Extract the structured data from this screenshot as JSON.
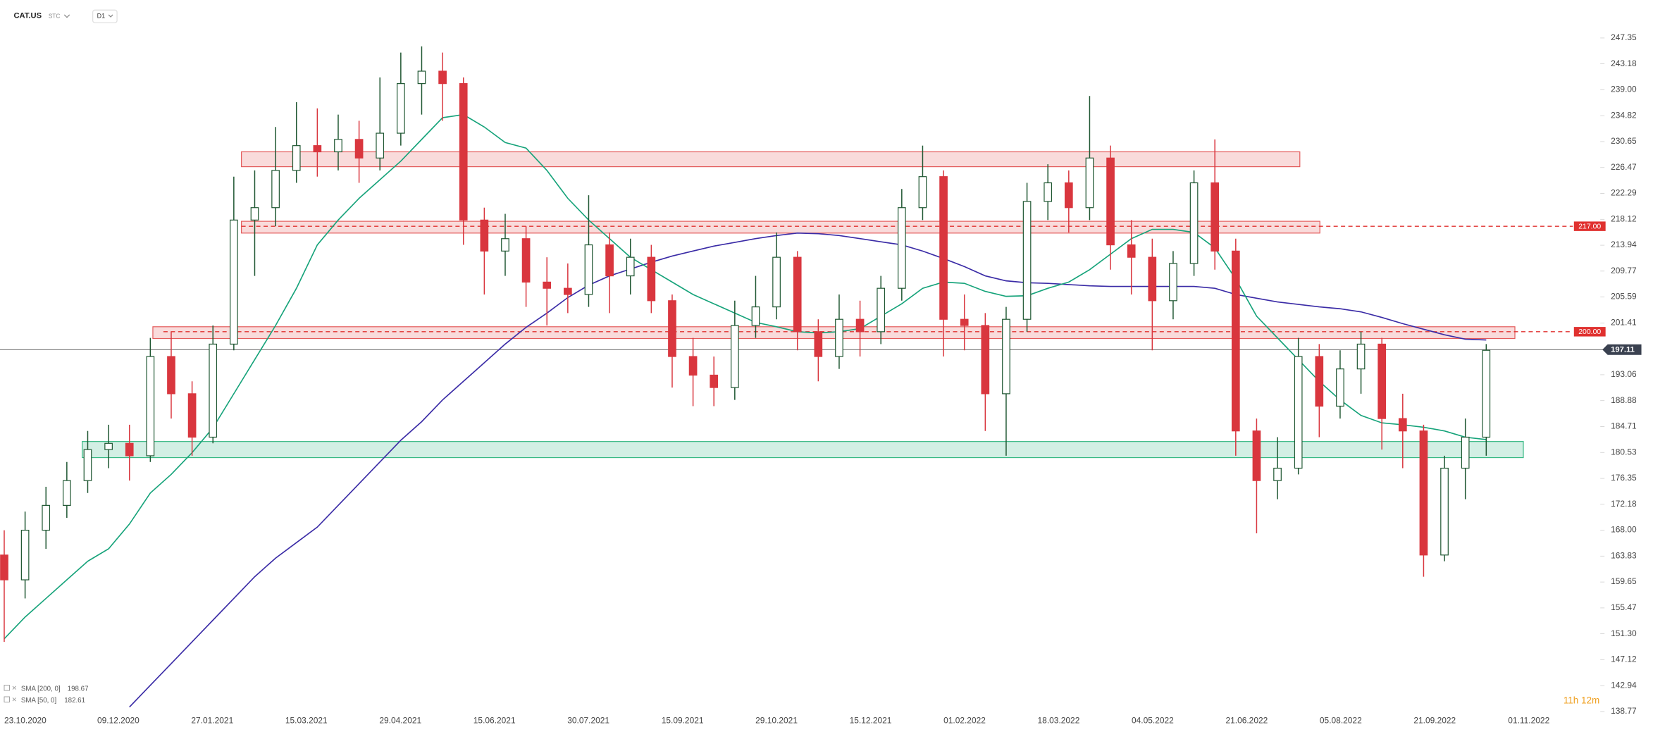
{
  "header": {
    "symbol": "CAT.US",
    "market": "STC",
    "interval": "D1"
  },
  "countdown": "11h 12m",
  "chart_data": {
    "type": "candlestick",
    "x_labels": [
      "23.10.2020",
      "09.12.2020",
      "27.01.2021",
      "15.03.2021",
      "29.04.2021",
      "15.06.2021",
      "30.07.2021",
      "15.09.2021",
      "29.10.2021",
      "15.12.2021",
      "01.02.2022",
      "18.03.2022",
      "04.05.2022",
      "21.06.2022",
      "05.08.2022",
      "21.09.2022",
      "01.11.2022"
    ],
    "ylim": [
      138.6,
      253.47
    ],
    "yticks": [
      138.77,
      142.94,
      147.12,
      {
        "value": 151.3,
        "label": "151.30"
      },
      155.47,
      159.65,
      163.83,
      {
        "value": 168,
        "label": "168.00"
      },
      172.18,
      176.35,
      180.53,
      184.71,
      188.88,
      193.06,
      201.41,
      205.59,
      209.77,
      213.94,
      218.12,
      222.29,
      226.47,
      230.65,
      234.82,
      {
        "value": 239,
        "label": "239.00"
      },
      243.18,
      247.35
    ],
    "series": [
      {
        "name": "CAT.US",
        "up_color": "#1e5631",
        "down_color": "#d9363e",
        "open": [
          164,
          160,
          168,
          172,
          176,
          181,
          182,
          180,
          196,
          190,
          183,
          198,
          218,
          220,
          226,
          230,
          229,
          231,
          228,
          232,
          240,
          242,
          240,
          218,
          213,
          215,
          208,
          207,
          206,
          214,
          209,
          212,
          205,
          196,
          193,
          191,
          201,
          204,
          212,
          200,
          196,
          202,
          200,
          207,
          220,
          225,
          202,
          201,
          190,
          202,
          221,
          224,
          220,
          228,
          214,
          212,
          205,
          211,
          224,
          213,
          184,
          176,
          178,
          196,
          188,
          194,
          198,
          186,
          184,
          164,
          178,
          183
        ],
        "high": [
          168,
          171,
          175,
          179,
          184,
          185,
          185,
          199,
          200,
          192,
          201,
          225,
          226,
          233,
          237,
          236,
          235,
          234,
          241,
          245,
          246,
          245,
          241,
          220,
          219,
          217,
          212,
          211,
          222,
          216,
          215,
          214,
          206,
          199,
          196,
          205,
          209,
          216,
          213,
          202,
          206,
          205,
          209,
          223,
          230,
          226,
          206,
          203,
          204,
          224,
          227,
          226,
          238,
          230,
          218,
          215,
          213,
          226,
          231,
          215,
          186,
          183,
          199,
          198,
          197,
          200,
          199,
          190,
          185,
          180,
          186,
          198
        ],
        "low": [
          150,
          157,
          165,
          170,
          174,
          178,
          176,
          179,
          186,
          180,
          182,
          197,
          209,
          217,
          224,
          225,
          226,
          224,
          226,
          230,
          235,
          234,
          214,
          206,
          209,
          204,
          201,
          203,
          204,
          203,
          206,
          203,
          191,
          188,
          188,
          189,
          199,
          202,
          197,
          192,
          194,
          196,
          198,
          205,
          218,
          196,
          197,
          184,
          180,
          200,
          218,
          216,
          218,
          210,
          206,
          197,
          202,
          209,
          210,
          180,
          167.5,
          173,
          177,
          183,
          186,
          190,
          181,
          178,
          160.5,
          163,
          173,
          180
        ],
        "close": [
          160,
          168,
          172,
          176,
          181,
          182,
          180,
          196,
          190,
          183,
          198,
          218,
          220,
          226,
          230,
          229,
          231,
          228,
          232,
          240,
          242,
          240,
          218,
          213,
          215,
          208,
          207,
          206,
          214,
          209,
          212,
          205,
          196,
          193,
          191,
          201,
          204,
          212,
          200,
          196,
          202,
          200,
          207,
          220,
          225,
          202,
          201,
          190,
          202,
          221,
          224,
          220,
          228,
          214,
          212,
          205,
          211,
          224,
          213,
          184,
          176,
          178,
          196,
          188,
          194,
          198,
          186,
          184,
          164,
          178,
          183,
          197
        ]
      }
    ],
    "indicators": [
      {
        "name": "SMA [200, 0]",
        "value": 198.67,
        "color": "#3a2ba6",
        "values": [
          null,
          null,
          null,
          null,
          null,
          null,
          139.5,
          143,
          146.5,
          150,
          153.5,
          157,
          160.5,
          163.5,
          166,
          168.5,
          172,
          175.5,
          179,
          182.5,
          185.5,
          189,
          192,
          195,
          198,
          200.7,
          203,
          205.5,
          207.5,
          209,
          210.1,
          211.2,
          212.2,
          213,
          213.8,
          214.4,
          215,
          215.5,
          215.9,
          215.8,
          215.5,
          215,
          214.5,
          214,
          213,
          211.8,
          210.5,
          209,
          208.2,
          207.9,
          207.8,
          207.6,
          207.4,
          207.3,
          207.3,
          207.3,
          207.3,
          207.3,
          207,
          206,
          205.4,
          204.8,
          204.4,
          204,
          203.7,
          203.2,
          202.3,
          201.3,
          200.4,
          199.5,
          198.8,
          198.67
        ]
      },
      {
        "name": "SMA [50, 0]",
        "value": 182.61,
        "color": "#16a37a",
        "values": [
          150.5,
          154,
          157,
          160,
          163,
          165,
          169,
          174,
          177,
          180.5,
          184.5,
          190,
          195.5,
          201,
          207,
          214,
          218,
          221.5,
          224.5,
          227.5,
          231,
          234.5,
          235,
          233,
          230.5,
          229.6,
          226,
          221.5,
          218,
          215,
          212,
          210,
          208,
          206,
          204.5,
          203,
          201.5,
          200.8,
          200,
          199.8,
          200,
          200.5,
          202.5,
          204.5,
          207,
          208,
          207.8,
          206.5,
          205.7,
          205.8,
          207,
          208,
          210,
          212.5,
          215,
          216.5,
          216.5,
          216,
          213.5,
          208.5,
          202.5,
          199,
          195.5,
          192,
          189,
          186.5,
          185.3,
          185,
          184.6,
          184,
          183,
          182.61
        ]
      }
    ],
    "zones": [
      {
        "from": 226.6,
        "to": 229,
        "color": "#e35b5b"
      },
      {
        "from": 215.9,
        "to": 217.8,
        "color": "#e35b5b"
      },
      {
        "from": 198.9,
        "to": 200.8,
        "color": "#e35b5b"
      },
      {
        "from": 179.7,
        "to": 182.3,
        "color": "#34b882"
      }
    ],
    "levels": [
      {
        "value": 217,
        "label": "217.00",
        "color": "#e0312f"
      },
      {
        "value": 200,
        "label": "200.00",
        "color": "#e0312f"
      }
    ],
    "last_price": 197.11
  }
}
